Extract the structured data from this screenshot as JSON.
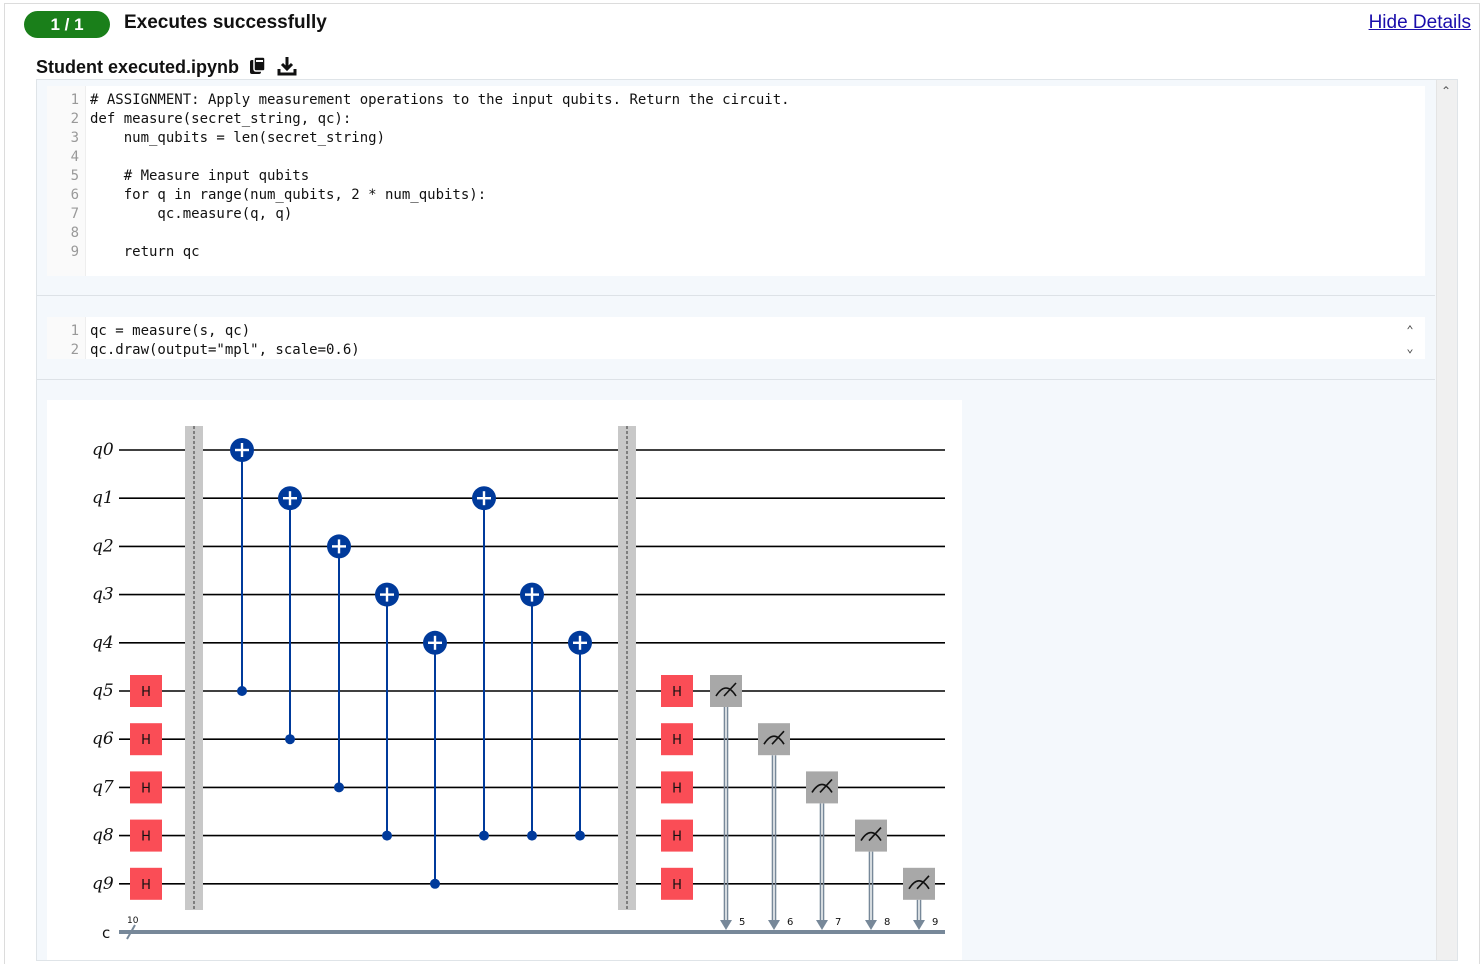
{
  "header": {
    "badge": "1 / 1",
    "status": "Executes successfully",
    "hide_link": "Hide Details"
  },
  "file": {
    "name": "Student executed.ipynb",
    "icons": [
      "notebook-icon",
      "download-icon"
    ]
  },
  "cell1": {
    "lines": [
      {
        "n": "1",
        "code": "# ASSIGNMENT: Apply measurement operations to the input qubits. Return the circuit."
      },
      {
        "n": "2",
        "code": "def measure(secret_string, qc):"
      },
      {
        "n": "3",
        "code": "    num_qubits = len(secret_string)"
      },
      {
        "n": "4",
        "code": ""
      },
      {
        "n": "5",
        "code": "    # Measure input qubits"
      },
      {
        "n": "6",
        "code": "    for q in range(num_qubits, 2 * num_qubits):"
      },
      {
        "n": "7",
        "code": "        qc.measure(q, q)"
      },
      {
        "n": "8",
        "code": ""
      },
      {
        "n": "9",
        "code": "    return qc"
      }
    ]
  },
  "cell2": {
    "lines": [
      {
        "n": "1",
        "code": "qc = measure(s, qc)"
      },
      {
        "n": "2",
        "code": "qc.draw(output=\"mpl\", scale=0.6)"
      }
    ]
  },
  "circuit": {
    "qubits": [
      "q0",
      "q1",
      "q2",
      "q3",
      "q4",
      "q5",
      "q6",
      "q7",
      "q8",
      "q9"
    ],
    "classical_register": "c",
    "classical_size": "10",
    "hadamard_label": "H",
    "hadamard_qubits_first": [
      5,
      6,
      7,
      8,
      9
    ],
    "cnots": [
      {
        "target": 0,
        "control": 5
      },
      {
        "target": 1,
        "control": 6
      },
      {
        "target": 2,
        "control": 7
      },
      {
        "target": 3,
        "control": 8
      },
      {
        "target": 4,
        "control": 9
      },
      {
        "target": 1,
        "control": 8
      },
      {
        "target": 3,
        "control": 8
      },
      {
        "target": 4,
        "control": 8
      }
    ],
    "hadamard_qubits_second": [
      5,
      6,
      7,
      8,
      9
    ],
    "measurements": [
      {
        "qubit": 5,
        "bit": "5"
      },
      {
        "qubit": 6,
        "bit": "6"
      },
      {
        "qubit": 7,
        "bit": "7"
      },
      {
        "qubit": 8,
        "bit": "8"
      },
      {
        "qubit": 9,
        "bit": "9"
      }
    ],
    "colors": {
      "cnot": "#003a9b",
      "hadamard": "#fa4d56",
      "measure": "#a8a8a8",
      "barrier": "#c8c8c8",
      "wire": "#000000",
      "classical": "#778899"
    }
  }
}
